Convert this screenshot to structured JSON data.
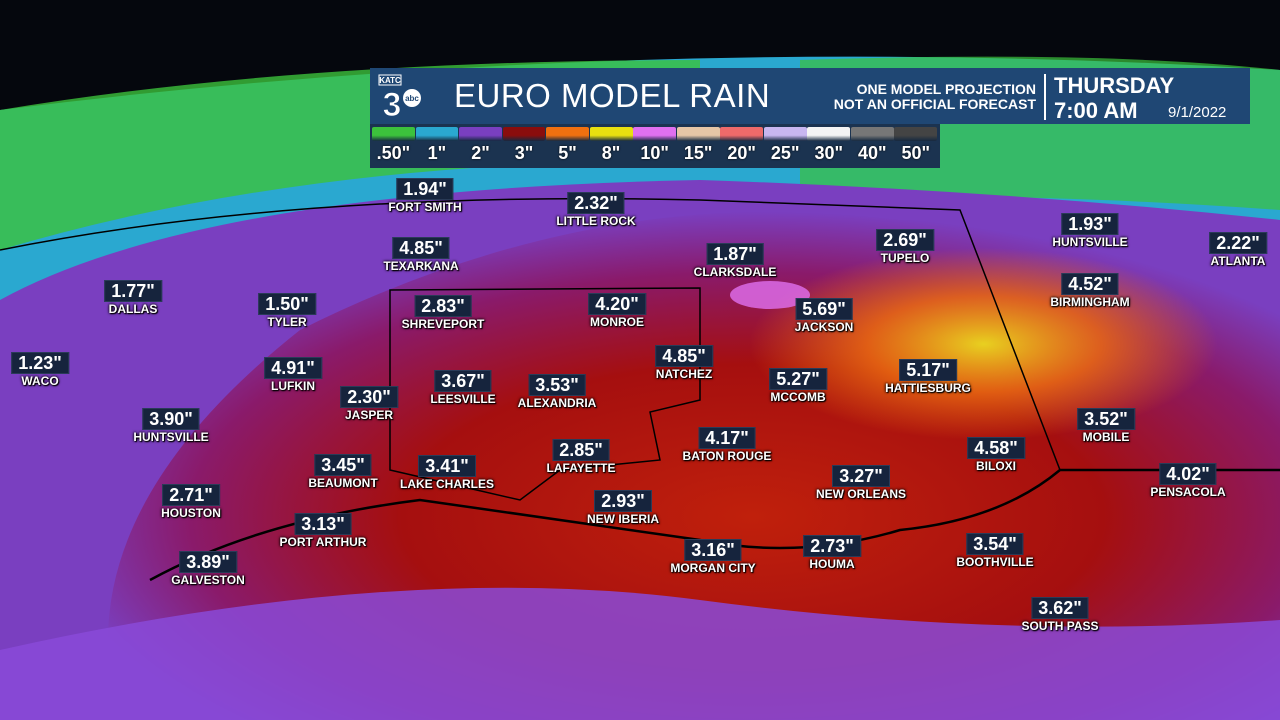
{
  "header": {
    "logo_text": "KATC",
    "logo_number": "3",
    "logo_network": "abc",
    "title": "EURO MODEL RAIN",
    "disclaimer_line1": "ONE MODEL PROJECTION",
    "disclaimer_line2": "NOT AN OFFICIAL FORECAST",
    "day": "THURSDAY",
    "time": "7:00 AM",
    "date": "9/1/2022"
  },
  "legend": [
    {
      "label": ".50\"",
      "color": "#3cc23c"
    },
    {
      "label": "1\"",
      "color": "#2aa8d0"
    },
    {
      "label": "2\"",
      "color": "#7a3fc0"
    },
    {
      "label": "3\"",
      "color": "#8a0d0d"
    },
    {
      "label": "5\"",
      "color": "#f07010"
    },
    {
      "label": "8\"",
      "color": "#e8e010"
    },
    {
      "label": "10\"",
      "color": "#e070f0"
    },
    {
      "label": "15\"",
      "color": "#e6c6a6"
    },
    {
      "label": "20\"",
      "color": "#ee6a6a"
    },
    {
      "label": "25\"",
      "color": "#c8b6f0"
    },
    {
      "label": "30\"",
      "color": "#f4f4f4"
    },
    {
      "label": "40\"",
      "color": "#777777"
    },
    {
      "label": "50\"",
      "color": "#444444"
    }
  ],
  "cities": [
    {
      "value": "1.94\"",
      "name": "FORT SMITH"
    },
    {
      "value": "2.32\"",
      "name": "LITTLE ROCK"
    },
    {
      "value": "4.85\"",
      "name": "TEXARKANA"
    },
    {
      "value": "1.87\"",
      "name": "CLARKSDALE"
    },
    {
      "value": "2.69\"",
      "name": "TUPELO"
    },
    {
      "value": "1.93\"",
      "name": "HUNTSVILLE"
    },
    {
      "value": "2.22\"",
      "name": "ATLANTA"
    },
    {
      "value": "1.77\"",
      "name": "DALLAS"
    },
    {
      "value": "1.50\"",
      "name": "TYLER"
    },
    {
      "value": "2.83\"",
      "name": "SHREVEPORT"
    },
    {
      "value": "4.20\"",
      "name": "MONROE"
    },
    {
      "value": "5.69\"",
      "name": "JACKSON"
    },
    {
      "value": "4.52\"",
      "name": "BIRMINGHAM"
    },
    {
      "value": "1.23\"",
      "name": "WACO"
    },
    {
      "value": "4.91\"",
      "name": "LUFKIN"
    },
    {
      "value": "4.85\"",
      "name": "NATCHEZ"
    },
    {
      "value": "3.67\"",
      "name": "LEESVILLE"
    },
    {
      "value": "3.53\"",
      "name": "ALEXANDRIA"
    },
    {
      "value": "5.27\"",
      "name": "MCCOMB"
    },
    {
      "value": "5.17\"",
      "name": "HATTIESBURG"
    },
    {
      "value": "2.30\"",
      "name": "JASPER"
    },
    {
      "value": "3.90\"",
      "name": "HUNTSVILLE"
    },
    {
      "value": "3.52\"",
      "name": "MOBILE"
    },
    {
      "value": "4.17\"",
      "name": "BATON ROUGE"
    },
    {
      "value": "2.85\"",
      "name": "LAFAYETTE"
    },
    {
      "value": "4.58\"",
      "name": "BILOXI"
    },
    {
      "value": "3.45\"",
      "name": "BEAUMONT"
    },
    {
      "value": "3.41\"",
      "name": "LAKE CHARLES"
    },
    {
      "value": "3.27\"",
      "name": "NEW ORLEANS"
    },
    {
      "value": "4.02\"",
      "name": "PENSACOLA"
    },
    {
      "value": "2.71\"",
      "name": "HOUSTON"
    },
    {
      "value": "2.93\"",
      "name": "NEW IBERIA"
    },
    {
      "value": "3.13\"",
      "name": "PORT ARTHUR"
    },
    {
      "value": "3.16\"",
      "name": "MORGAN CITY"
    },
    {
      "value": "2.73\"",
      "name": "HOUMA"
    },
    {
      "value": "3.54\"",
      "name": "BOOTHVILLE"
    },
    {
      "value": "3.89\"",
      "name": "GALVESTON"
    },
    {
      "value": "3.62\"",
      "name": "SOUTH PASS"
    }
  ]
}
